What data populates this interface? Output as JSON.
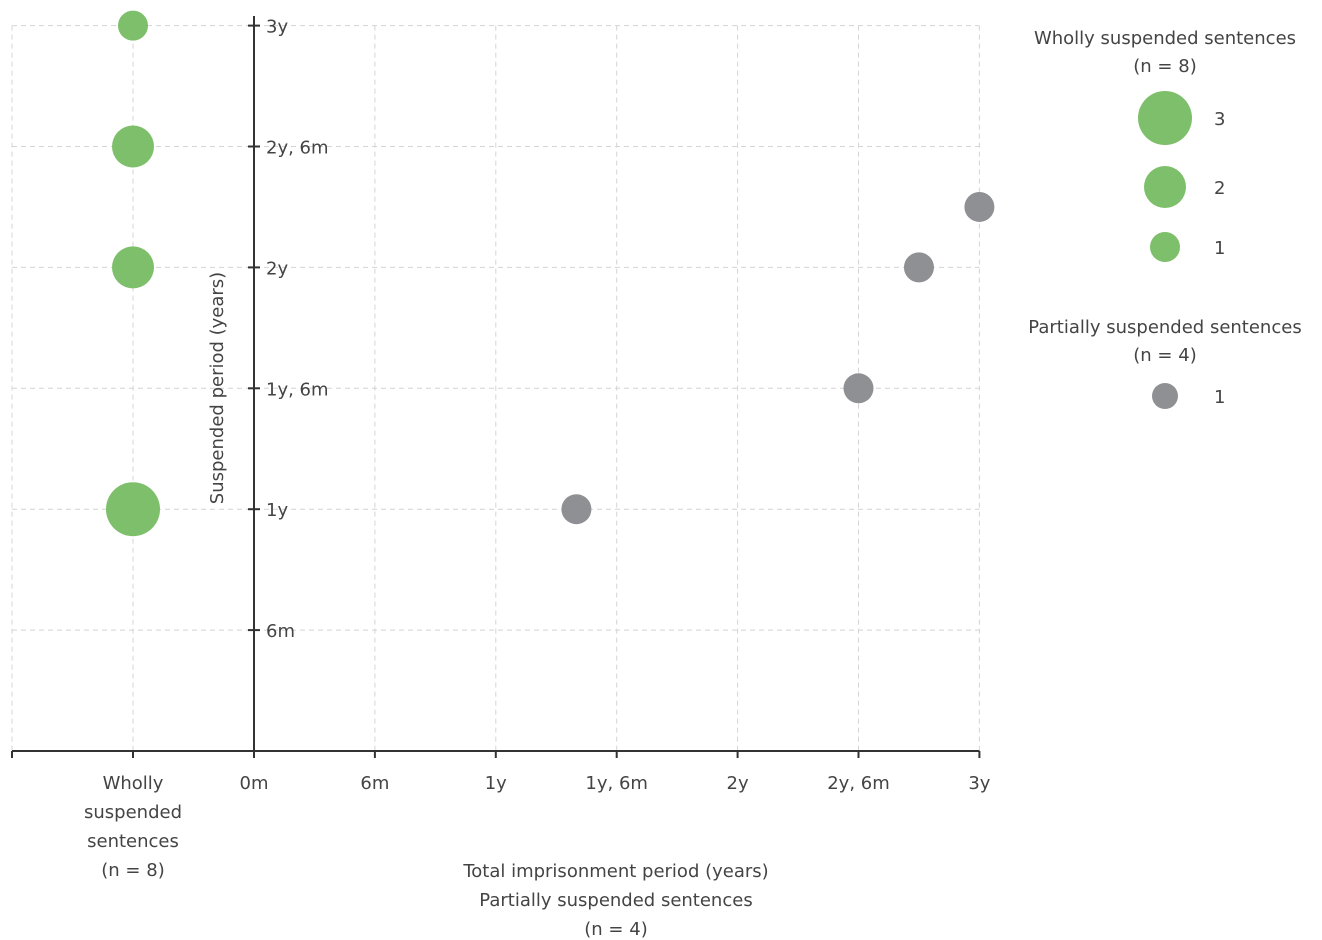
{
  "chart_data": {
    "type": "scatter",
    "x_axis": {
      "title_lines": [
        "Total imprisonment period (years)",
        "Partially suspended sentences",
        "(n = 4)"
      ],
      "range_months": [
        0,
        36
      ],
      "tick_months": [
        0,
        6,
        12,
        18,
        24,
        30,
        36
      ],
      "tick_labels": [
        "0m",
        "6m",
        "1y",
        "1y, 6m",
        "2y",
        "2y, 6m",
        "3y"
      ],
      "category_label_lines": [
        "Wholly",
        "suspended",
        "sentences",
        "(n = 8)"
      ]
    },
    "y_axis": {
      "title": "Suspended period (years)",
      "range_months": [
        0,
        36
      ],
      "tick_months": [
        6,
        12,
        18,
        24,
        30,
        36
      ],
      "tick_labels": [
        "6m",
        "1y",
        "1y, 6m",
        "2y",
        "2y, 6m",
        "3y"
      ]
    },
    "grid": true,
    "series": [
      {
        "name": "Wholly suspended sentences",
        "color": "#7dbf6a",
        "points": [
          {
            "x": "Wholly suspended sentences",
            "y_months": 36,
            "count": 1
          },
          {
            "x": "Wholly suspended sentences",
            "y_months": 30,
            "count": 2
          },
          {
            "x": "Wholly suspended sentences",
            "y_months": 24,
            "count": 2
          },
          {
            "x": "Wholly suspended sentences",
            "y_months": 12,
            "count": 3
          }
        ]
      },
      {
        "name": "Partially suspended sentences",
        "color": "#8f9094",
        "points": [
          {
            "x_months": 16,
            "y_months": 12,
            "count": 1
          },
          {
            "x_months": 30,
            "y_months": 18,
            "count": 1
          },
          {
            "x_months": 33,
            "y_months": 24,
            "count": 1
          },
          {
            "x_months": 36,
            "y_months": 27,
            "count": 1
          }
        ]
      }
    ],
    "legend": {
      "placement": "right",
      "groups": [
        {
          "title_lines": [
            "Wholly suspended sentences",
            "(n = 8)"
          ],
          "color": "#7dbf6a",
          "items": [
            {
              "label": "3",
              "count": 3
            },
            {
              "label": "2",
              "count": 2
            },
            {
              "label": "1",
              "count": 1
            }
          ]
        },
        {
          "title_lines": [
            "Partially suspended sentences",
            "(n = 4)"
          ],
          "color": "#8f9094",
          "items": [
            {
              "label": "1",
              "count": 1
            }
          ]
        }
      ]
    }
  }
}
